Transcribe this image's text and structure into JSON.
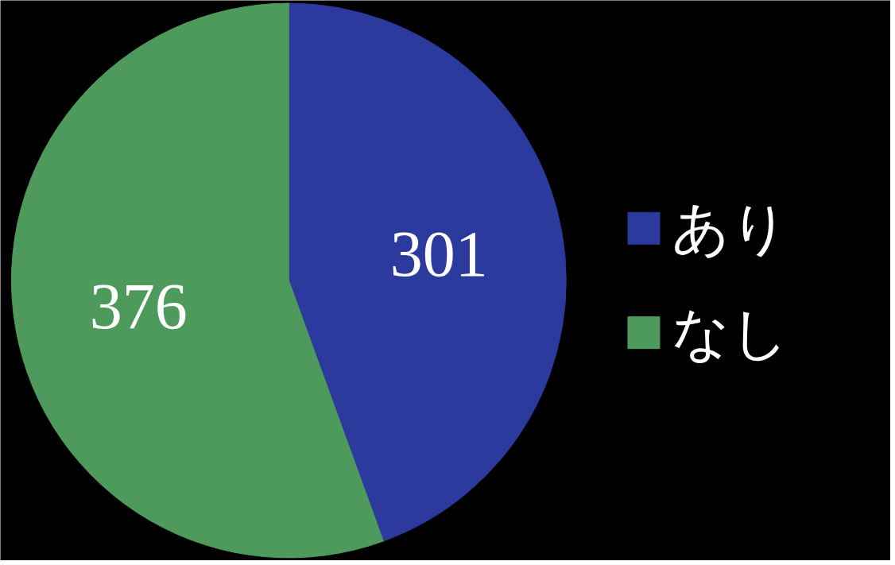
{
  "chart_data": {
    "type": "pie",
    "categories": [
      "あり",
      "なし"
    ],
    "values": [
      301,
      376
    ],
    "colors": [
      "#2b3a9c",
      "#4e9a5c"
    ],
    "data_labels": true,
    "legend": "right"
  }
}
